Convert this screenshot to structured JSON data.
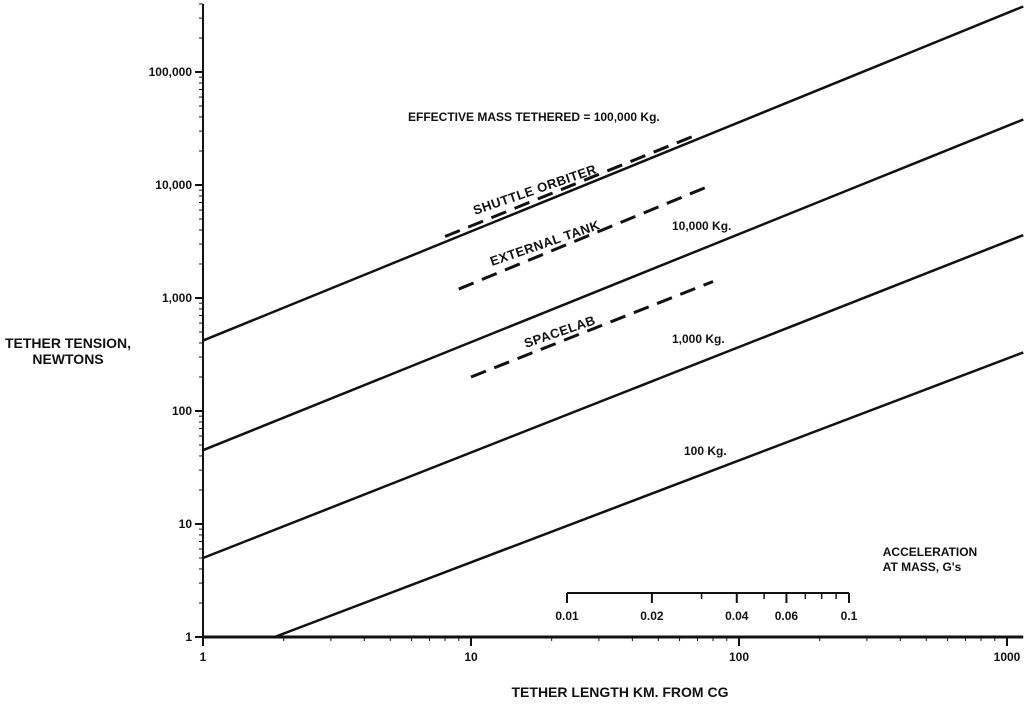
{
  "chart_data": {
    "type": "line",
    "title": "",
    "xlabel": "TETHER LENGTH KM. FROM CG",
    "ylabel": [
      "TETHER TENSION,",
      "NEWTONS"
    ],
    "x_scale": "log",
    "y_scale": "log",
    "xlim": [
      1,
      1150
    ],
    "ylim": [
      1,
      400000
    ],
    "x_ticks": [
      1,
      10,
      100,
      1000
    ],
    "x_tick_labels": [
      "1",
      "10",
      "100",
      "1000"
    ],
    "y_ticks": [
      1,
      10,
      100,
      1000,
      10000,
      100000
    ],
    "y_tick_labels": [
      "1",
      "10",
      "100",
      "1,000",
      "10,000",
      "100,000"
    ],
    "grid": false,
    "series": [
      {
        "name": "EFFECTIVE MASS TETHERED = 100,000 Kg.",
        "style": "solid",
        "x": [
          1,
          1150
        ],
        "y": [
          420,
          380000
        ]
      },
      {
        "name": "10,000 Kg.",
        "style": "solid",
        "x": [
          1,
          1150
        ],
        "y": [
          45,
          38000
        ]
      },
      {
        "name": "1,000 Kg.",
        "style": "solid",
        "x": [
          1,
          1150
        ],
        "y": [
          5,
          3600
        ]
      },
      {
        "name": "100 Kg.",
        "style": "solid",
        "x": [
          1.85,
          1150
        ],
        "y": [
          1,
          330
        ]
      },
      {
        "name": "SHUTTLE ORBITER",
        "style": "dashed",
        "x": [
          8,
          70
        ],
        "y": [
          3500,
          28000
        ]
      },
      {
        "name": "EXTERNAL TANK",
        "style": "dashed",
        "x": [
          9,
          75
        ],
        "y": [
          1200,
          9500
        ]
      },
      {
        "name": "SPACELAB",
        "style": "dashed",
        "x": [
          10,
          80
        ],
        "y": [
          200,
          1400
        ]
      }
    ],
    "acceleration_scale": {
      "title": [
        "ACCELERATION",
        "AT MASS, G's"
      ],
      "ticks": [
        0.01,
        0.02,
        0.04,
        0.06,
        0.1
      ],
      "tick_labels": [
        "0.01",
        "0.02",
        "0.04",
        "0.06",
        "0.1"
      ],
      "minor_ticks": [
        0.03,
        0.05,
        0.07,
        0.08,
        0.09
      ]
    }
  }
}
